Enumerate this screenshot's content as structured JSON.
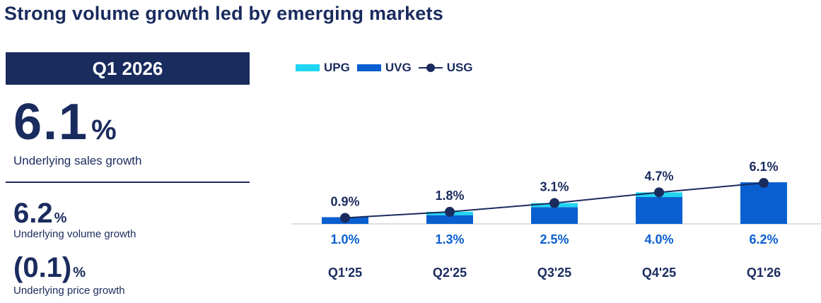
{
  "title": "Strong volume growth led by emerging markets",
  "left_panel": {
    "period": "Q1 2026",
    "main_kpi": {
      "value": "6.1",
      "unit": "%",
      "label": "Underlying sales growth"
    },
    "volume_kpi": {
      "value": "6.2",
      "unit": "%",
      "label": "Underlying volume growth"
    },
    "price_kpi": {
      "value": "(0.1)",
      "unit": "%",
      "label": "Underlying price growth"
    }
  },
  "colors": {
    "navy": "#1a2b5e",
    "upg": "#1fd5f2",
    "uvg": "#0a5fd0",
    "usg": "#1a2b5e"
  },
  "chart_data": {
    "type": "bar",
    "stacked": true,
    "legend_position": "top-left",
    "categories": [
      "Q1'25",
      "Q2'25",
      "Q3'25",
      "Q4'25",
      "Q1'26"
    ],
    "series": [
      {
        "name": "UPG",
        "type": "bar",
        "values": [
          -0.1,
          0.5,
          0.6,
          0.7,
          -0.1
        ]
      },
      {
        "name": "UVG",
        "type": "bar",
        "values": [
          1.0,
          1.3,
          2.5,
          4.0,
          6.2
        ],
        "labels": [
          "1.0%",
          "1.3%",
          "2.5%",
          "4.0%",
          "6.2%"
        ]
      },
      {
        "name": "USG",
        "type": "line",
        "values": [
          0.9,
          1.8,
          3.1,
          4.7,
          6.1
        ],
        "labels": [
          "0.9%",
          "1.8%",
          "3.1%",
          "4.7%",
          "6.1%"
        ]
      }
    ]
  }
}
